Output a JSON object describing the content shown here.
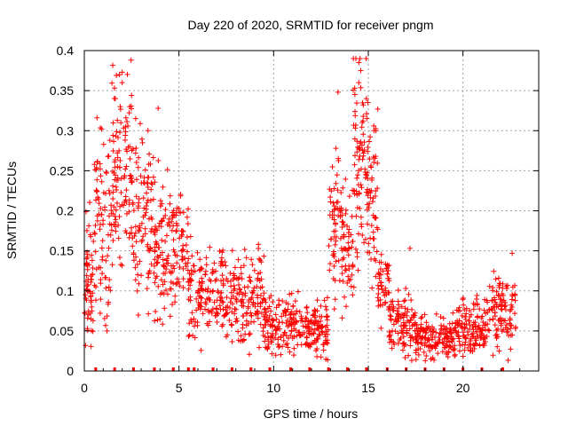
{
  "chart_data": {
    "type": "scatter",
    "title": "Day 220 of 2020, SRMTID for receiver pngm",
    "xlabel": "GPS time / hours",
    "ylabel": "SRMTID / TECUs",
    "xlim": [
      0,
      24
    ],
    "ylim": [
      0,
      0.4
    ],
    "x_ticks": [
      0,
      5,
      10,
      15,
      20
    ],
    "x_tick_labels": [
      "0",
      "5",
      "10",
      "15",
      "20"
    ],
    "y_ticks": [
      0,
      0.05,
      0.1,
      0.15,
      0.2,
      0.25,
      0.3,
      0.35,
      0.4
    ],
    "y_tick_labels": [
      "0",
      "0.05",
      "0.1",
      "0.15",
      "0.2",
      "0.25",
      "0.3",
      "0.35",
      "0.4"
    ],
    "grid": true,
    "marker": "plus",
    "color": "#ff0000",
    "gap_markers_x": [
      0.6,
      1.6,
      2.6,
      3.7,
      4.7,
      5.5,
      5.8,
      6.8,
      7.8,
      8.8,
      9.8,
      10.9,
      11.9,
      12.9,
      13.9,
      14.9,
      16.0,
      17.0,
      18.0,
      19.0,
      20.0,
      21.0,
      22.1
    ],
    "series": [
      {
        "name": "SRMTID",
        "segments": [
          {
            "x_start": 0.0,
            "x_end": 0.5,
            "center": 0.12,
            "spread": 0.045,
            "n": 60
          },
          {
            "x_start": 0.5,
            "x_end": 1.4,
            "center": 0.19,
            "spread": 0.07,
            "n": 80
          },
          {
            "x_start": 1.4,
            "x_end": 2.6,
            "center": 0.25,
            "spread": 0.06,
            "n": 120
          },
          {
            "x_start": 2.6,
            "x_end": 3.6,
            "center": 0.19,
            "spread": 0.055,
            "n": 90
          },
          {
            "x_start": 3.6,
            "x_end": 4.6,
            "center": 0.16,
            "spread": 0.055,
            "n": 90
          },
          {
            "x_start": 4.6,
            "x_end": 5.5,
            "center": 0.15,
            "spread": 0.04,
            "n": 70
          },
          {
            "x_start": 5.5,
            "x_end": 7.5,
            "center": 0.1,
            "spread": 0.03,
            "n": 150
          },
          {
            "x_start": 7.5,
            "x_end": 9.5,
            "center": 0.09,
            "spread": 0.03,
            "n": 150
          },
          {
            "x_start": 9.5,
            "x_end": 11.5,
            "center": 0.06,
            "spread": 0.02,
            "n": 150
          },
          {
            "x_start": 11.5,
            "x_end": 12.9,
            "center": 0.055,
            "spread": 0.02,
            "n": 110
          },
          {
            "x_start": 12.9,
            "x_end": 13.6,
            "center": 0.17,
            "spread": 0.05,
            "n": 60
          },
          {
            "x_start": 13.6,
            "x_end": 14.2,
            "center": 0.15,
            "spread": 0.04,
            "n": 55
          },
          {
            "x_start": 14.2,
            "x_end": 15.0,
            "center": 0.26,
            "spread": 0.07,
            "n": 90
          },
          {
            "x_start": 15.0,
            "x_end": 15.5,
            "center": 0.2,
            "spread": 0.06,
            "n": 45
          },
          {
            "x_start": 15.5,
            "x_end": 16.1,
            "center": 0.11,
            "spread": 0.025,
            "n": 50
          },
          {
            "x_start": 16.1,
            "x_end": 17.5,
            "center": 0.06,
            "spread": 0.02,
            "n": 110
          },
          {
            "x_start": 17.5,
            "x_end": 19.5,
            "center": 0.04,
            "spread": 0.015,
            "n": 150
          },
          {
            "x_start": 19.5,
            "x_end": 20.3,
            "center": 0.05,
            "spread": 0.02,
            "n": 60
          },
          {
            "x_start": 20.3,
            "x_end": 21.5,
            "center": 0.06,
            "spread": 0.02,
            "n": 90
          },
          {
            "x_start": 21.5,
            "x_end": 22.8,
            "center": 0.075,
            "spread": 0.025,
            "n": 100
          }
        ],
        "highlight_points": [
          {
            "x": 2.0,
            "y": 0.373
          },
          {
            "x": 2.0,
            "y": 0.36
          },
          {
            "x": 1.9,
            "y": 0.33
          },
          {
            "x": 2.4,
            "y": 0.33
          },
          {
            "x": 3.9,
            "y": 0.328
          },
          {
            "x": 13.4,
            "y": 0.348
          },
          {
            "x": 14.5,
            "y": 0.385
          },
          {
            "x": 14.6,
            "y": 0.375
          },
          {
            "x": 14.5,
            "y": 0.36
          },
          {
            "x": 14.9,
            "y": 0.34
          },
          {
            "x": 15.4,
            "y": 0.3
          },
          {
            "x": 15.3,
            "y": 0.3
          },
          {
            "x": 15.5,
            "y": 0.327
          },
          {
            "x": 9.2,
            "y": 0.158
          },
          {
            "x": 22.6,
            "y": 0.147
          },
          {
            "x": 17.2,
            "y": 0.153
          },
          {
            "x": 1.2,
            "y": 0.05
          },
          {
            "x": 18.3,
            "y": 0.015
          }
        ]
      }
    ]
  }
}
